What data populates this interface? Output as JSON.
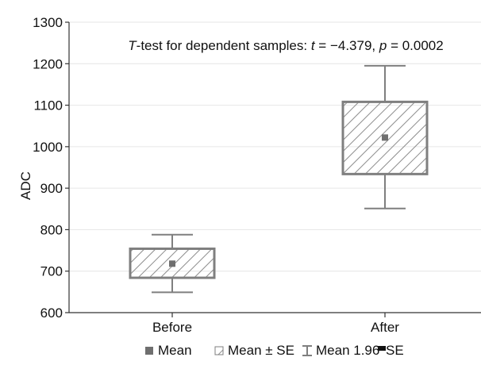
{
  "chart_data": {
    "type": "box",
    "annotation": {
      "prefix_italic": "T",
      "text_before_t": "-test for dependent samples: ",
      "t_symbol": "t",
      "t_text": " = −4.379, ",
      "p_symbol": "p",
      "p_text": " = 0.0002"
    },
    "ylabel": "ADC",
    "xlabel": "",
    "ylim": [
      600,
      1300
    ],
    "yticks": [
      600,
      700,
      800,
      900,
      1000,
      1100,
      1200,
      1300
    ],
    "grid": true,
    "legend_position": "bottom",
    "categories": [
      "Before",
      "After"
    ],
    "series": [
      {
        "name": "Before",
        "mean": 718,
        "box_low": 684,
        "box_high": 754,
        "whisker_low": 649,
        "whisker_high": 788
      },
      {
        "name": "After",
        "mean": 1022,
        "box_low": 934,
        "box_high": 1108,
        "whisker_low": 851,
        "whisker_high": 1195
      }
    ],
    "legend": {
      "mean": "Mean",
      "mean_se": "Mean ± SE",
      "mean_ci": "Mean 1.96",
      "mean_ci_suffix": "SE"
    },
    "colors": {
      "box_stroke": "#7f7f7f",
      "hatch": "#8c8c8c",
      "mean_marker": "#6f6f6f",
      "grid": "#e6e6e6",
      "axis": "#333333",
      "text": "#111111"
    }
  }
}
